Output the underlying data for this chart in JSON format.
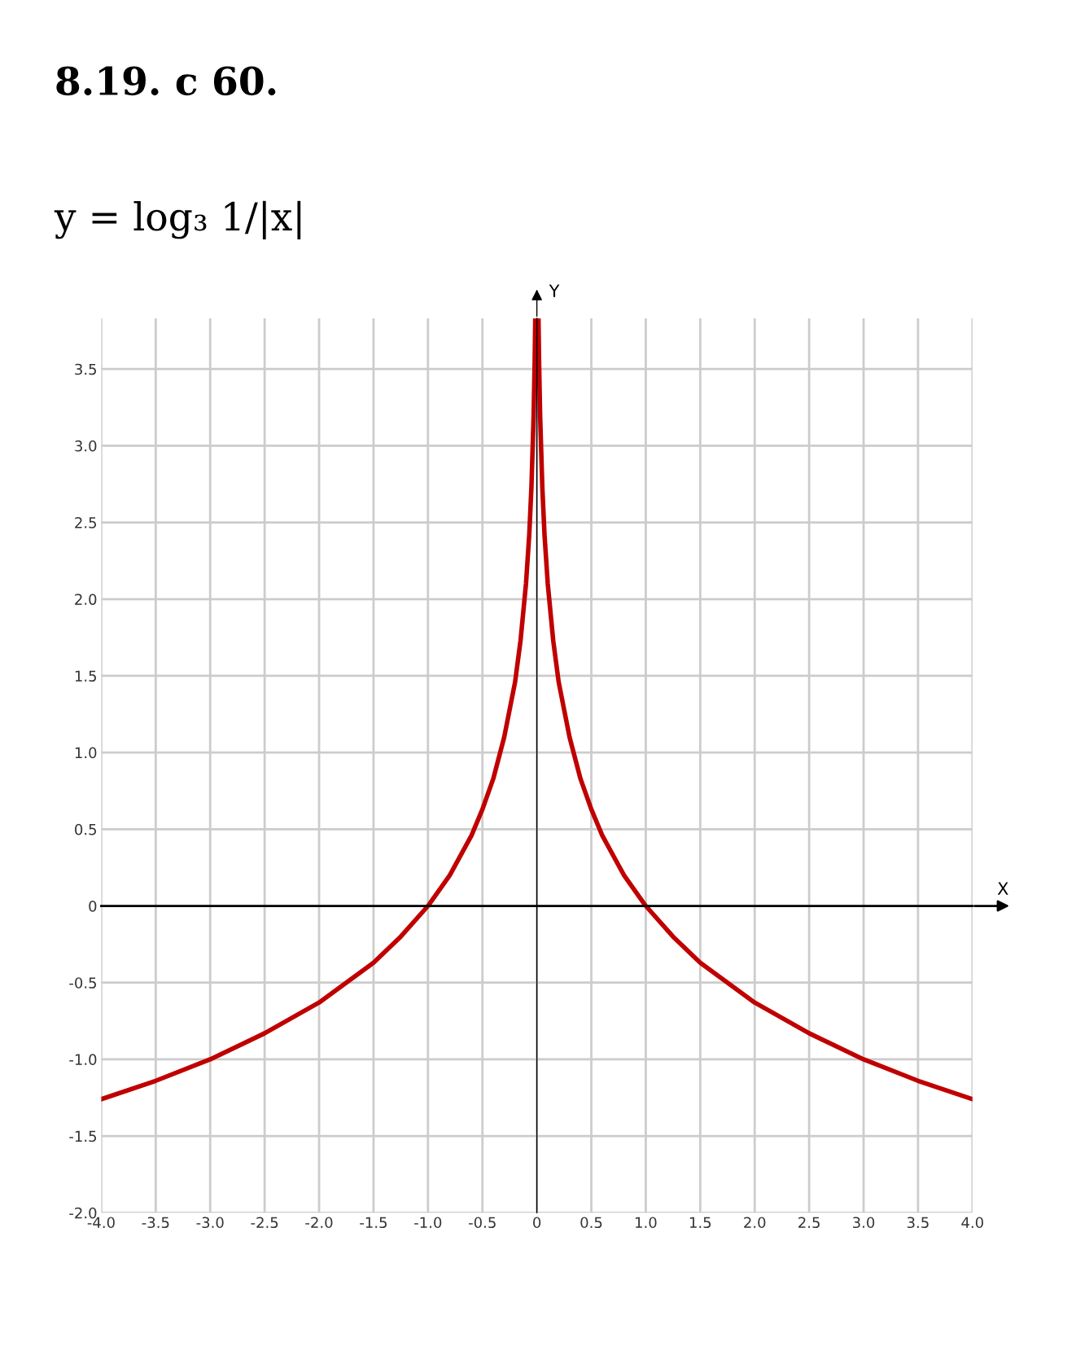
{
  "chart_data": {
    "type": "line",
    "title": "8.19. с 60.",
    "subtitle": "y = log₃ 1/|x|",
    "xlabel": "X",
    "ylabel": "Y",
    "x": [
      -4,
      -3.5,
      -3,
      -2.5,
      -2,
      -1.5,
      -1.25,
      -1,
      -0.8,
      -0.6,
      -0.5,
      -0.4,
      -0.3,
      -0.2,
      -0.15,
      -0.1,
      -0.07,
      -0.05,
      -0.03,
      -0.02,
      -0.015,
      0,
      0.015,
      0.02,
      0.03,
      0.05,
      0.07,
      0.1,
      0.15,
      0.2,
      0.3,
      0.4,
      0.5,
      0.6,
      0.8,
      1,
      1.25,
      1.5,
      2,
      2.5,
      3,
      3.5,
      4
    ],
    "series": [
      {
        "color": "#c00000",
        "values": [
          -1.26,
          -1.14,
          -1.0,
          -0.83,
          -0.63,
          -0.37,
          -0.2,
          0,
          0.2,
          0.46,
          0.63,
          0.83,
          1.1,
          1.46,
          1.73,
          2.1,
          2.42,
          2.73,
          3.19,
          3.56,
          3.82,
          null,
          3.82,
          3.56,
          3.19,
          2.73,
          2.42,
          2.1,
          1.73,
          1.46,
          1.1,
          0.83,
          0.63,
          0.46,
          0.2,
          0,
          -0.2,
          -0.37,
          -0.63,
          -0.83,
          -1.0,
          -1.14,
          -1.26
        ]
      }
    ],
    "xlim": [
      -4,
      4
    ],
    "ylim": [
      -2,
      3.83
    ],
    "xticks": [
      {
        "value": -4,
        "label": "-4.0"
      },
      -3.5,
      {
        "value": -3,
        "label": "-3.0"
      },
      -2.5,
      {
        "value": -2,
        "label": "-2.0"
      },
      -1.5,
      {
        "value": -1,
        "label": "-1.0"
      },
      -0.5,
      0,
      0.5,
      {
        "value": 1,
        "label": "1.0"
      },
      1.5,
      {
        "value": 2,
        "label": "2.0"
      },
      2.5,
      {
        "value": 3,
        "label": "3.0"
      },
      3.5,
      {
        "value": 4,
        "label": "4.0"
      }
    ],
    "yticks": [
      {
        "value": -2,
        "label": "-2.0"
      },
      -1.5,
      {
        "value": -1,
        "label": "-1.0"
      },
      -0.5,
      0,
      0.5,
      {
        "value": 1,
        "label": "1.0"
      },
      1.5,
      {
        "value": 2,
        "label": "2.0"
      },
      2.5,
      {
        "value": 3,
        "label": "3.0"
      },
      3.5
    ],
    "grid": true,
    "marker": "none",
    "line_style": "solid"
  }
}
